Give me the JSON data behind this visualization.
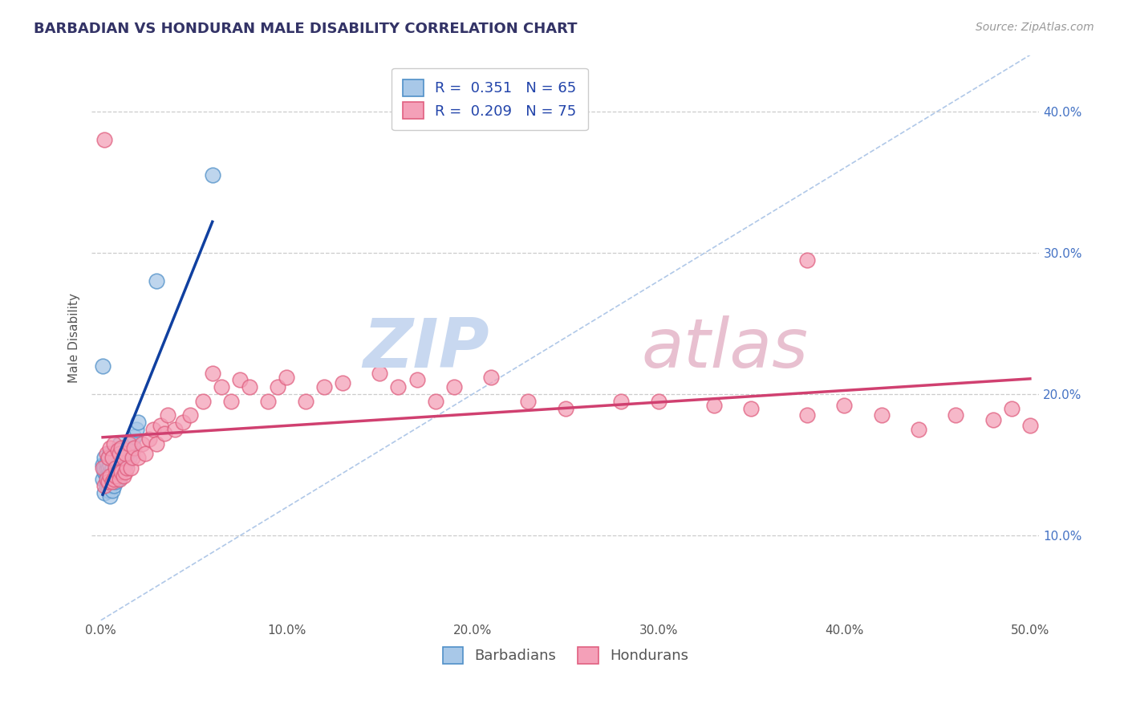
{
  "title": "BARBADIAN VS HONDURAN MALE DISABILITY CORRELATION CHART",
  "source": "Source: ZipAtlas.com",
  "ylabel": "Male Disability",
  "xlim": [
    -0.005,
    0.505
  ],
  "ylim": [
    0.04,
    0.44
  ],
  "xticks": [
    0.0,
    0.1,
    0.2,
    0.3,
    0.4,
    0.5
  ],
  "xticklabels": [
    "0.0%",
    "10.0%",
    "20.0%",
    "30.0%",
    "40.0%",
    "50.0%"
  ],
  "yticks": [
    0.1,
    0.2,
    0.3,
    0.4
  ],
  "yticklabels": [
    "10.0%",
    "20.0%",
    "30.0%",
    "40.0%"
  ],
  "barbadian_color": "#a8c8e8",
  "honduran_color": "#f4a0b8",
  "barbadian_edge": "#5090c8",
  "honduran_edge": "#e06080",
  "blue_line_color": "#1040a0",
  "pink_line_color": "#d04070",
  "ref_line_color": "#b0c8e8",
  "background_color": "#ffffff",
  "grid_color": "#cccccc",
  "legend_R_barbadian": "0.351",
  "legend_N_barbadian": "65",
  "legend_R_honduran": "0.209",
  "legend_N_honduran": "75",
  "barbadian_x": [
    0.001,
    0.001,
    0.002,
    0.002,
    0.002,
    0.002,
    0.003,
    0.003,
    0.003,
    0.003,
    0.003,
    0.004,
    0.004,
    0.004,
    0.004,
    0.004,
    0.005,
    0.005,
    0.005,
    0.005,
    0.005,
    0.005,
    0.006,
    0.006,
    0.006,
    0.006,
    0.006,
    0.007,
    0.007,
    0.007,
    0.007,
    0.007,
    0.008,
    0.008,
    0.008,
    0.008,
    0.009,
    0.009,
    0.009,
    0.009,
    0.01,
    0.01,
    0.01,
    0.01,
    0.01,
    0.011,
    0.011,
    0.011,
    0.012,
    0.012,
    0.012,
    0.013,
    0.013,
    0.014,
    0.014,
    0.015,
    0.015,
    0.016,
    0.017,
    0.018,
    0.019,
    0.02,
    0.001,
    0.03,
    0.06
  ],
  "barbadian_y": [
    0.14,
    0.15,
    0.13,
    0.145,
    0.148,
    0.155,
    0.135,
    0.138,
    0.142,
    0.148,
    0.152,
    0.132,
    0.138,
    0.143,
    0.148,
    0.155,
    0.128,
    0.135,
    0.14,
    0.145,
    0.15,
    0.158,
    0.132,
    0.138,
    0.142,
    0.148,
    0.155,
    0.135,
    0.14,
    0.145,
    0.152,
    0.158,
    0.138,
    0.142,
    0.148,
    0.155,
    0.14,
    0.145,
    0.15,
    0.158,
    0.142,
    0.148,
    0.152,
    0.158,
    0.165,
    0.145,
    0.15,
    0.158,
    0.148,
    0.155,
    0.162,
    0.15,
    0.158,
    0.152,
    0.16,
    0.155,
    0.165,
    0.16,
    0.165,
    0.17,
    0.175,
    0.18,
    0.22,
    0.28,
    0.355
  ],
  "honduran_x": [
    0.001,
    0.002,
    0.003,
    0.003,
    0.004,
    0.004,
    0.005,
    0.005,
    0.006,
    0.006,
    0.007,
    0.007,
    0.008,
    0.008,
    0.009,
    0.009,
    0.01,
    0.01,
    0.011,
    0.011,
    0.012,
    0.012,
    0.013,
    0.013,
    0.014,
    0.015,
    0.016,
    0.017,
    0.018,
    0.02,
    0.022,
    0.024,
    0.026,
    0.028,
    0.03,
    0.032,
    0.034,
    0.036,
    0.04,
    0.044,
    0.048,
    0.055,
    0.06,
    0.065,
    0.07,
    0.075,
    0.08,
    0.09,
    0.095,
    0.1,
    0.11,
    0.12,
    0.13,
    0.15,
    0.16,
    0.17,
    0.18,
    0.19,
    0.21,
    0.23,
    0.25,
    0.28,
    0.3,
    0.33,
    0.35,
    0.38,
    0.4,
    0.42,
    0.44,
    0.46,
    0.48,
    0.49,
    0.5,
    0.002,
    0.38
  ],
  "honduran_y": [
    0.148,
    0.135,
    0.14,
    0.158,
    0.138,
    0.155,
    0.142,
    0.162,
    0.138,
    0.155,
    0.14,
    0.165,
    0.142,
    0.148,
    0.145,
    0.16,
    0.14,
    0.158,
    0.145,
    0.162,
    0.142,
    0.155,
    0.145,
    0.158,
    0.148,
    0.165,
    0.148,
    0.155,
    0.162,
    0.155,
    0.165,
    0.158,
    0.168,
    0.175,
    0.165,
    0.178,
    0.172,
    0.185,
    0.175,
    0.18,
    0.185,
    0.195,
    0.215,
    0.205,
    0.195,
    0.21,
    0.205,
    0.195,
    0.205,
    0.212,
    0.195,
    0.205,
    0.208,
    0.215,
    0.205,
    0.21,
    0.195,
    0.205,
    0.212,
    0.195,
    0.19,
    0.195,
    0.195,
    0.192,
    0.19,
    0.185,
    0.192,
    0.185,
    0.175,
    0.185,
    0.182,
    0.19,
    0.178,
    0.38,
    0.295
  ]
}
